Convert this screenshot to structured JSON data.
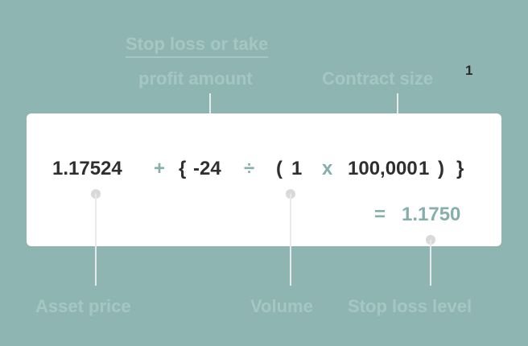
{
  "labels": {
    "stop_amount_line1": "Stop loss or take",
    "stop_amount_line2": "profit amount",
    "contract_size": "Contract size",
    "footnote_marker": "1",
    "asset_price": "Asset price",
    "volume": "Volume",
    "stop_level": "Stop loss level"
  },
  "formula": {
    "asset_price": "1.17524",
    "plus": "+",
    "open_brace": "{",
    "amount": "-24",
    "divide": "÷",
    "open_paren": "(",
    "volume": "1",
    "times": "x",
    "contract_size": "100,000",
    "contract_footnote": "1",
    "close_paren": ")",
    "close_brace": "}",
    "equals": "=",
    "result": "1.1750"
  },
  "colors": {
    "background": "#8fb5b3",
    "card": "#ffffff",
    "accent": "#86aeab",
    "text": "#2f2f2f"
  }
}
